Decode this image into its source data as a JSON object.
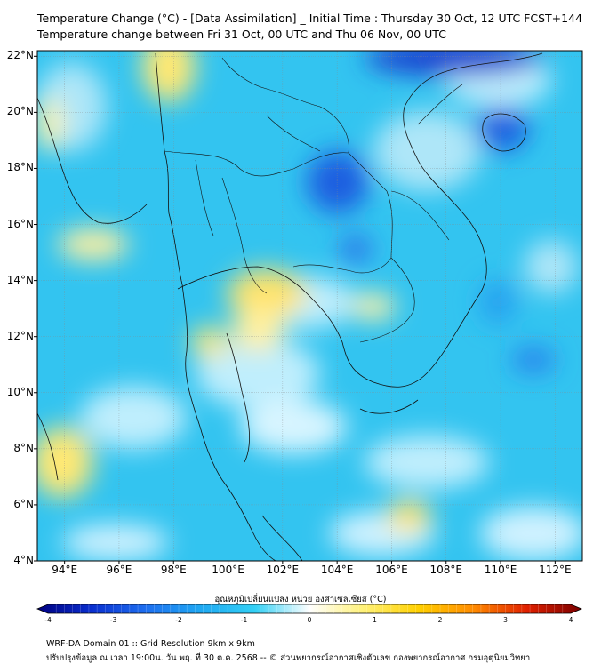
{
  "header": {
    "title_line1": "Temperature Change (°C) - [Data Assimilation] _ Initial Time : Thursday 30 Oct, 12 UTC FCST+144",
    "title_line2": "Temperature change between Fri 31 Oct, 00 UTC and Thu 06 Nov, 00 UTC"
  },
  "map": {
    "lat_labels": [
      "22°N",
      "20°N",
      "18°N",
      "16°N",
      "14°N",
      "12°N",
      "10°N",
      "8°N",
      "6°N",
      "4°N"
    ],
    "lon_labels": [
      "94°E",
      "96°E",
      "98°E",
      "100°E",
      "102°E",
      "104°E",
      "106°E",
      "108°E",
      "110°E",
      "112°E"
    ],
    "extent": {
      "lon_min": 93,
      "lon_max": 113,
      "lat_min": 4,
      "lat_max": 22.2
    },
    "field_colors": {
      "base": "#33c4f0",
      "deep_blue": "#1a4fd6",
      "light": "#e6f7ff",
      "yellow": "#ffe873"
    },
    "coastline_color": "#111111"
  },
  "colorbar": {
    "title": "อุณหภูมิเปลี่ยนแปลง หน่วย องศาเซลเซียส (°C)",
    "ticks": [
      "-4",
      "-3",
      "-2",
      "-1",
      "0",
      "1",
      "2",
      "3",
      "4"
    ],
    "min": -4,
    "max": 4,
    "stops": [
      "#000080",
      "#0a2fcf",
      "#1e6ff0",
      "#1fa8f2",
      "#33d0f5",
      "#ffffff",
      "#fff176",
      "#ffd000",
      "#ff8c00",
      "#e02000",
      "#7a0000"
    ]
  },
  "footer": {
    "line1": "WRF-DA Domain 01 :: Grid Resolution 9km x 9km",
    "line2": "ปรับปรุงข้อมูล ณ เวลา 19:00น. วัน พฤ. ที่ 30 ต.ค. 2568 -- © ส่วนพยากรณ์อากาศเชิงตัวเลข กองพยากรณ์อากาศ กรมอุตุนิยมวิทยา"
  }
}
